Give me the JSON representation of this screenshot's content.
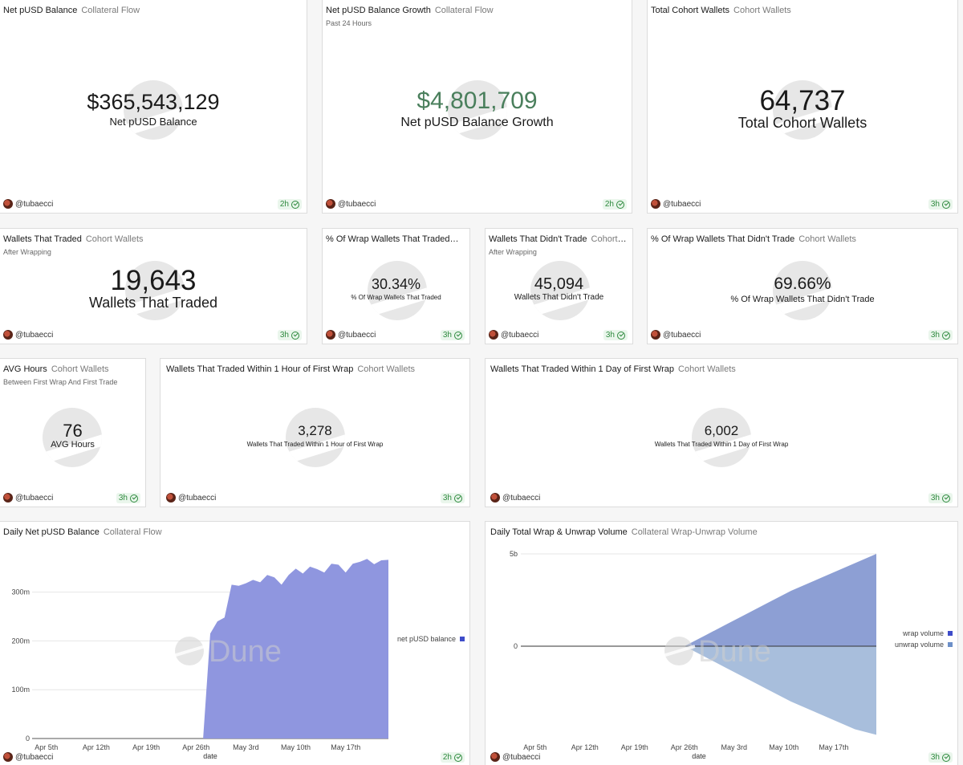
{
  "author": "@tubaecci",
  "cards": {
    "net_balance": {
      "title": "Net pUSD Balance",
      "source": "Collateral Flow",
      "value": "$365,543,129",
      "label": "Net pUSD Balance",
      "age": "2h"
    },
    "net_growth": {
      "title": "Net pUSD Balance Growth",
      "source": "Collateral Flow",
      "subtitle": "Past 24 Hours",
      "value": "$4,801,709",
      "label": "Net pUSD Balance Growth",
      "age": "2h",
      "value_color": "#4a7f5c"
    },
    "total_cohort": {
      "title": "Total Cohort Wallets",
      "source": "Cohort Wallets",
      "value": "64,737",
      "label": "Total Cohort Wallets",
      "age": "3h"
    },
    "traded": {
      "title": "Wallets That Traded",
      "source": "Cohort Wallets",
      "subtitle": "After Wrapping",
      "value": "19,643",
      "label": "Wallets That Traded",
      "age": "3h"
    },
    "pct_traded": {
      "title": "% Of Wrap Wallets That Traded",
      "source": "Co...",
      "value": "30.34%",
      "label": "% Of Wrap Wallets That Traded",
      "age": "3h"
    },
    "didnt_trade": {
      "title": "Wallets That Didn't Trade",
      "source": "Cohort W...",
      "subtitle": "After Wrapping",
      "value": "45,094",
      "label": "Wallets That Didn't Trade",
      "age": "3h"
    },
    "pct_didnt": {
      "title": "% Of Wrap Wallets That Didn't Trade",
      "source": "Cohort Wallets",
      "value": "69.66%",
      "label": "% Of Wrap Wallets That Didn't Trade",
      "age": "3h"
    },
    "avg_hours": {
      "title": "AVG Hours",
      "source": "Cohort Wallets",
      "subtitle": "Between First Wrap And First Trade",
      "value": "76",
      "label": "AVG Hours",
      "age": "3h"
    },
    "within_hour": {
      "title": "Wallets That Traded Within 1 Hour of First Wrap",
      "source": "Cohort Wallets",
      "value": "3,278",
      "label": "Wallets That Traded Within 1 Hour of First Wrap",
      "age": "3h"
    },
    "within_day": {
      "title": "Wallets That Traded Within 1 Day of First Wrap",
      "source": "Cohort Wallets",
      "value": "6,002",
      "label": "Wallets That Traded Within 1 Day of First Wrap",
      "age": "3h"
    },
    "daily_balance": {
      "title": "Daily Net pUSD Balance",
      "source": "Collateral Flow",
      "age": "2h"
    },
    "daily_volume": {
      "title": "Daily Total Wrap & Unwrap Volume",
      "source": "Collateral Wrap-Unwrap Volume",
      "age": "3h"
    }
  },
  "watermark": "Dune",
  "chart_data": [
    {
      "type": "area",
      "title": "Daily Net pUSD Balance",
      "xlabel": "date",
      "ylabel": "",
      "x_ticks": [
        "Apr 5th",
        "Apr 12th",
        "Apr 19th",
        "Apr 26th",
        "May 3rd",
        "May 10th",
        "May 17th"
      ],
      "y_ticks": [
        "0",
        "100m",
        "200m",
        "300m"
      ],
      "ylim": [
        0,
        370000000
      ],
      "legend_position": "right",
      "color": "#8f96df",
      "series": [
        {
          "name": "net pUSD balance",
          "x": [
            "Apr 3",
            "Apr 27",
            "Apr 28",
            "Apr 29",
            "Apr 30",
            "May 1",
            "May 2",
            "May 3",
            "May 4",
            "May 5",
            "May 6",
            "May 7",
            "May 8",
            "May 9",
            "May 10",
            "May 11",
            "May 12",
            "May 13",
            "May 14",
            "May 15",
            "May 16",
            "May 17",
            "May 18",
            "May 19",
            "May 20",
            "May 21",
            "May 22",
            "May 23"
          ],
          "values": [
            0,
            0,
            215000000,
            240000000,
            248000000,
            315000000,
            313000000,
            318000000,
            325000000,
            320000000,
            335000000,
            330000000,
            315000000,
            335000000,
            348000000,
            338000000,
            352000000,
            347000000,
            340000000,
            358000000,
            356000000,
            340000000,
            358000000,
            362000000,
            368000000,
            357000000,
            365000000,
            366000000
          ]
        }
      ]
    },
    {
      "type": "area",
      "title": "Daily Total Wrap & Unwrap Volume",
      "xlabel": "date",
      "ylabel": "",
      "x_ticks": [
        "Apr 5th",
        "Apr 12th",
        "Apr 19th",
        "Apr 26th",
        "May 3rd",
        "May 10th",
        "May 17th"
      ],
      "y_ticks": [
        "0",
        "5b"
      ],
      "ylim": [
        -5000000000,
        5000000000
      ],
      "legend_position": "right",
      "series": [
        {
          "name": "wrap volume",
          "color": "#8d9fd4",
          "x": [
            "Apr 26",
            "Apr 29",
            "May 2",
            "May 5",
            "May 8",
            "May 11",
            "May 14",
            "May 17",
            "May 20",
            "May 23"
          ],
          "values": [
            0,
            600000000,
            1200000000,
            1800000000,
            2400000000,
            3000000000,
            3500000000,
            4000000000,
            4500000000,
            5000000000
          ]
        },
        {
          "name": "unwrap volume",
          "color": "#a8bedc",
          "x": [
            "Apr 26",
            "Apr 29",
            "May 2",
            "May 5",
            "May 8",
            "May 11",
            "May 14",
            "May 17",
            "May 20",
            "May 23"
          ],
          "values": [
            0,
            -600000000,
            -1200000000,
            -1800000000,
            -2400000000,
            -3000000000,
            -3500000000,
            -4000000000,
            -4500000000,
            -4800000000
          ]
        }
      ]
    }
  ]
}
